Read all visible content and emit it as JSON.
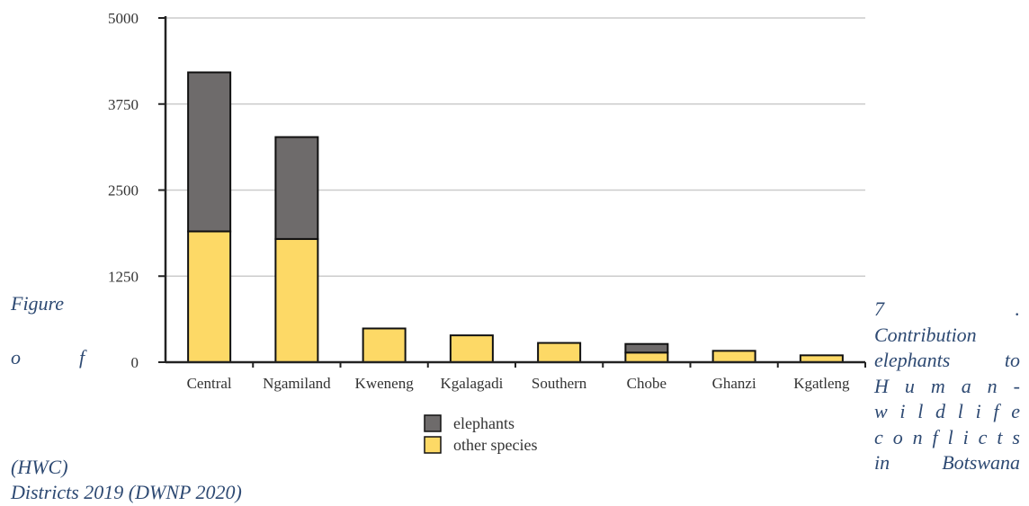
{
  "chart_data": {
    "type": "bar",
    "stacked": true,
    "categories": [
      "Central",
      "Ngamiland",
      "Kweneng",
      "Kgalagadi",
      "Southern",
      "Chobe",
      "Ghanzi",
      "Kgatleng"
    ],
    "series": [
      {
        "name": "other species",
        "color": "#fdd966",
        "values": [
          1900,
          1790,
          490,
          390,
          280,
          140,
          165,
          100
        ]
      },
      {
        "name": "elephants",
        "color": "#6e6b6b",
        "values": [
          2310,
          1480,
          0,
          0,
          0,
          125,
          0,
          0
        ]
      }
    ],
    "ylim": [
      0,
      5000
    ],
    "yticks": [
      "0",
      "1250",
      "2500",
      "3750",
      "5000"
    ],
    "grid": true,
    "legend_position": "bottom-center",
    "legend_order": [
      "elephants",
      "other species"
    ]
  },
  "caption": {
    "left_line1_a": "Figure",
    "left_line2_a": "o",
    "left_line2_b": "f",
    "left_line3": "(HWC)",
    "left_line4": "Districts 2019 (DWNP 2020)",
    "right_lines": [
      [
        "7",
        "."
      ],
      [
        "Contribution"
      ],
      [
        "elephants",
        "to"
      ],
      [
        "H",
        "u",
        "m",
        "a",
        "n",
        "-"
      ],
      [
        "w",
        "i",
        "l",
        "d",
        "l",
        "i",
        "f",
        "e"
      ],
      [
        "c",
        "o",
        "n",
        "f",
        "l",
        "i",
        "c",
        "t",
        "s"
      ],
      [
        "in",
        "Botswana"
      ]
    ]
  },
  "colors": {
    "caption_text": "#2e4a73",
    "gridline": "#cccccc",
    "axis": "#222222"
  }
}
